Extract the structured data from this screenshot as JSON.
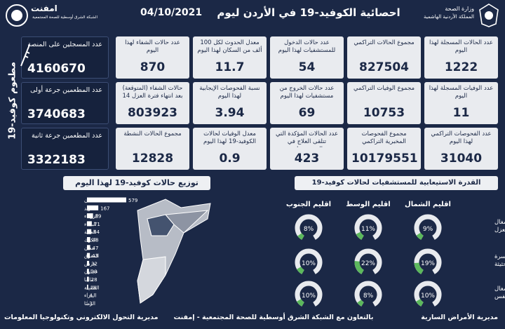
{
  "header": {
    "title": "احصائية الكوفيد-19 في الأردن ليوم",
    "date": "04/10/2021",
    "logo_name": "امفنت",
    "logo_subtitle": "الشبكة الشرق أوسطية للصحة المجتمعية",
    "ministry": "وزارة الصحة",
    "kingdom": "المملكة الأردنية الهاشمية"
  },
  "stats": [
    [
      {
        "label": "عدد الحالات المسجلة لهذا اليوم",
        "value": 1222
      },
      {
        "label": "مجموع الحالات التراكمي",
        "value": 827504
      },
      {
        "label": "عدد حالات الدخول للمستشفيات لهذا اليوم",
        "value": 54
      },
      {
        "label": "معدل الحدوث لكل 100 ألف من السكان لهذا اليوم",
        "value": 11.7
      },
      {
        "label": "عدد حالات الشفاء لهذا اليوم",
        "value": 870
      }
    ],
    [
      {
        "label": "عدد الوفيات المسجلة لهذا اليوم",
        "value": 11
      },
      {
        "label": "مجموع الوفيات التراكمي",
        "value": 10753
      },
      {
        "label": "عدد حالات الخروج من مستشفيات لهذا اليوم",
        "value": 69
      },
      {
        "label": "نسبة الفحوصات الإيجابية لهذا اليوم",
        "value": 3.94
      },
      {
        "label": "حالات الشفاء (المتوقعة) بعد انتهاء فترة العزل 14 يوم",
        "value": 803923
      }
    ],
    [
      {
        "label": "عدد الفحوصات التراكمي لهذا اليوم",
        "value": 31040
      },
      {
        "label": "مجموع الفحوصات المخبرية التراكمي",
        "value": 10179551
      },
      {
        "label": "عدد الحالات المؤكدة التي تتلقى العلاج في المستشفيات",
        "value": 423
      },
      {
        "label": "معدل الوفيات لحالات الكوفيد-19 لهذا اليوم",
        "value": 0.9
      },
      {
        "label": "مجموع الحالات النشطة",
        "value": 12828
      }
    ]
  ],
  "vaccine": {
    "title": "مطعوم كوفيد-19",
    "items": [
      {
        "label": "عدد المسجلين على المنصة",
        "value": 4160670
      },
      {
        "label": "عدد المطعمين جرعة أولى",
        "value": 3740683
      },
      {
        "label": "عدد المطعمين جرعة ثانية",
        "value": 3322183
      }
    ]
  },
  "chart_data": {
    "type": "bar",
    "title": "توزيع حالات كوفيد-19 لهذا اليوم",
    "orientation": "horizontal",
    "color": "#ffffff",
    "categories": [
      "عمان",
      "اربد",
      "الزرقاء",
      "البلقاء",
      "العقبة",
      "الكرك",
      "معان",
      "المفرق",
      "جرش",
      "عجلون",
      "مادبا",
      "الطفيلة",
      "البتراء",
      "الرمثا"
    ],
    "values": [
      579,
      167,
      89,
      71,
      64,
      48,
      47,
      43,
      32,
      29,
      28,
      18,
      4,
      3
    ]
  },
  "capacity": {
    "title": "القدرة الاستيعابية للمستشفيات لحالات كوفيد-19",
    "regions": [
      "اقليم الشمال",
      "اقليم الوسط",
      "اقليم الجنوب"
    ],
    "color": "#5cb85c",
    "rows": [
      {
        "label": "نسبة اشغال اسرة العزل",
        "values": [
          9,
          11,
          8
        ],
        "value_labels": [
          "9%",
          "11%",
          "8%"
        ]
      },
      {
        "label": "نسبة اشغال اسرة العناية الحثيثة",
        "values": [
          19,
          22,
          10
        ],
        "value_labels": [
          "19%",
          "22%",
          "10%"
        ]
      },
      {
        "label": "نسبة اشغال اجهزة التنفس",
        "values": [
          10,
          8,
          10
        ],
        "value_labels": [
          "10%",
          "8%",
          "10%"
        ]
      }
    ]
  },
  "footer": {
    "right": "مديرية الأمراض السارية",
    "center": "بالتعاون مع الشبكة الشرق أوسطية للصحة المجتمعية - إمفنت",
    "left": "مديرية التحول الالكتروني وتكنولوجيا المعلومات"
  }
}
